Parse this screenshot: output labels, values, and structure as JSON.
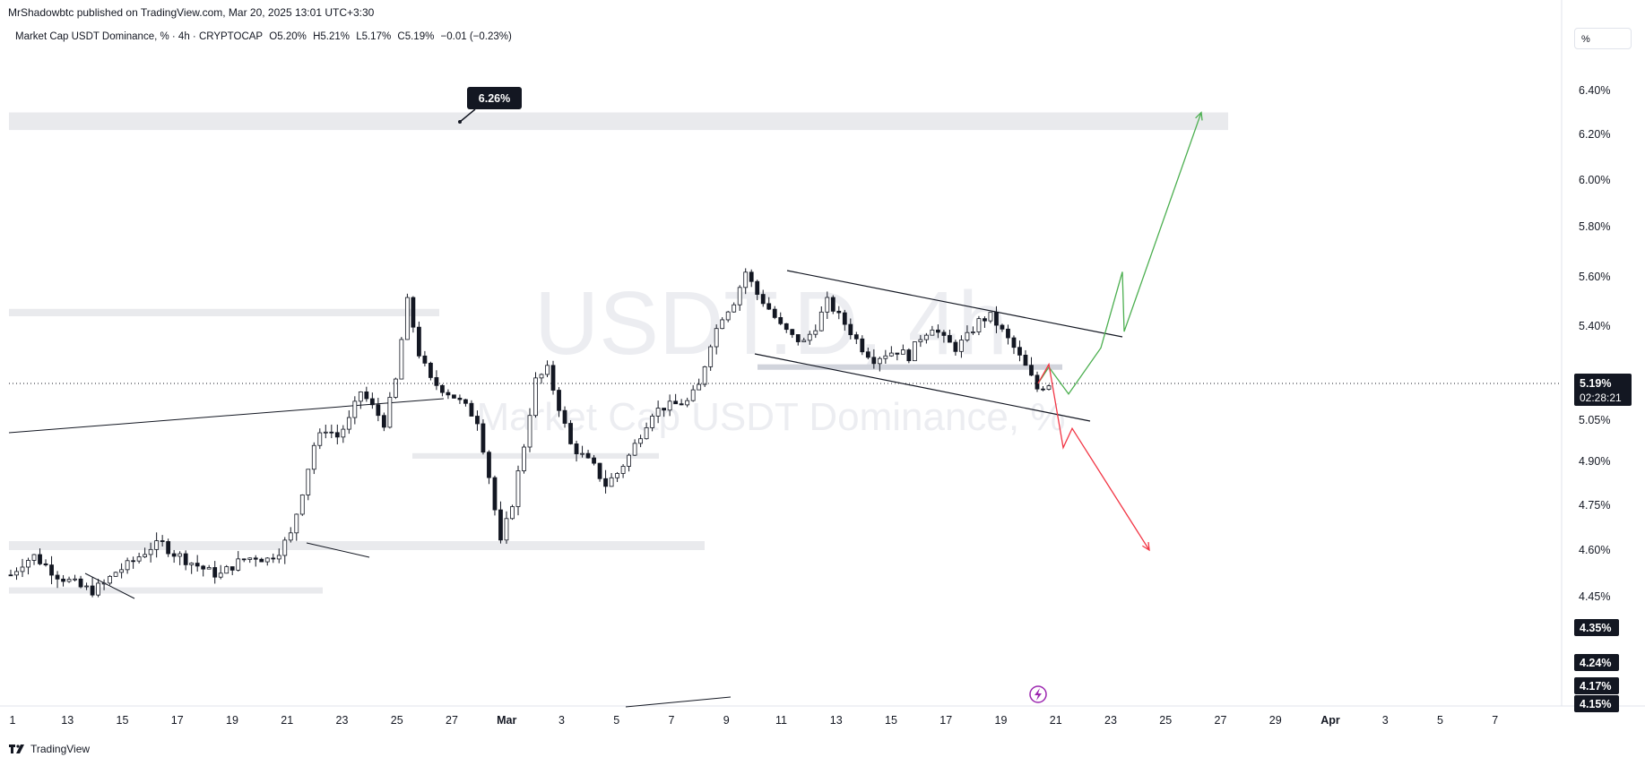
{
  "header": {
    "credit": "MrShadowbtc published on TradingView.com, Mar 20, 2025 13:01 UTC+3:30",
    "legend": {
      "symbol": "Market Cap USDT Dominance, % · 4h · CRYPTOCAP",
      "open": "O5.20%",
      "high": "H5.21%",
      "low": "L5.17%",
      "close": "C5.19%",
      "change": "−0.01 (−0.23%)"
    },
    "unit_button": "%"
  },
  "footer": {
    "brand": "TradingView"
  },
  "watermark": {
    "line1": "USDT.D, 4h",
    "line2": "Market Cap USDT Dominance, %"
  },
  "colors": {
    "candle": "#131722",
    "zone": "#e9eaed",
    "green_path": "#4caf50",
    "red_path": "#f23645",
    "price_badge": "#131722",
    "event_icon": "#9c27b0"
  },
  "chart_data": {
    "type": "candlestick",
    "symbol": "USDT.D",
    "timeframe": "4h",
    "y_axis_unit": "%",
    "y_ticks": [
      "6.40%",
      "6.20%",
      "6.00%",
      "5.80%",
      "5.60%",
      "5.40%",
      "5.05%",
      "4.90%",
      "4.75%",
      "4.60%",
      "4.45%"
    ],
    "x_ticks": [
      "1",
      "13",
      "15",
      "17",
      "19",
      "21",
      "23",
      "25",
      "27",
      "Mar",
      "3",
      "5",
      "7",
      "9",
      "11",
      "13",
      "15",
      "17",
      "19",
      "21",
      "23",
      "25",
      "27",
      "29",
      "Apr",
      "3",
      "5",
      "7"
    ],
    "last_price": {
      "label": "5.19%",
      "countdown": "02:28:21"
    },
    "axis_badges": [
      "4.35%",
      "4.24%",
      "4.17%",
      "4.15%"
    ],
    "annotation": {
      "label": "6.26%"
    },
    "close_path": [
      4.52,
      4.56,
      4.58,
      4.55,
      4.52,
      4.5,
      4.48,
      4.47,
      4.49,
      4.53,
      4.55,
      4.58,
      4.61,
      4.62,
      4.59,
      4.57,
      4.55,
      4.53,
      4.52,
      4.55,
      4.57,
      4.58,
      4.57,
      4.6,
      4.65,
      4.8,
      4.96,
      5.02,
      4.99,
      5.05,
      5.16,
      5.1,
      5.04,
      5.2,
      5.5,
      5.3,
      5.2,
      5.17,
      5.14,
      5.1,
      5.05,
      4.85,
      4.62,
      4.76,
      4.96,
      5.2,
      5.24,
      5.1,
      4.96,
      4.92,
      4.88,
      4.82,
      4.86,
      4.92,
      5.0,
      5.08,
      5.1,
      5.11,
      5.12,
      5.18,
      5.34,
      5.44,
      5.5,
      5.62,
      5.53,
      5.47,
      5.4,
      5.36,
      5.34,
      5.4,
      5.5,
      5.44,
      5.38,
      5.32,
      5.28,
      5.3,
      5.31,
      5.29,
      5.36,
      5.4,
      5.35,
      5.32,
      5.36,
      5.42,
      5.44,
      5.38,
      5.32,
      5.25,
      5.17,
      5.19
    ],
    "zones": [
      {
        "from": 6.22,
        "to": 6.3
      },
      {
        "from": 5.44,
        "to": 5.47
      },
      {
        "from": 5.24,
        "to": 5.26
      },
      {
        "from": 4.91,
        "to": 4.93
      },
      {
        "from": 4.6,
        "to": 4.63
      },
      {
        "from": 4.46,
        "to": 4.48
      }
    ],
    "scenarios": [
      {
        "name": "bullish",
        "color": "#4caf50",
        "points": [
          5.19,
          5.25,
          5.15,
          5.32,
          5.62,
          5.38,
          6.3
        ]
      },
      {
        "name": "bearish",
        "color": "#f23645",
        "points": [
          5.19,
          5.26,
          4.95,
          5.02,
          4.6
        ]
      }
    ]
  }
}
